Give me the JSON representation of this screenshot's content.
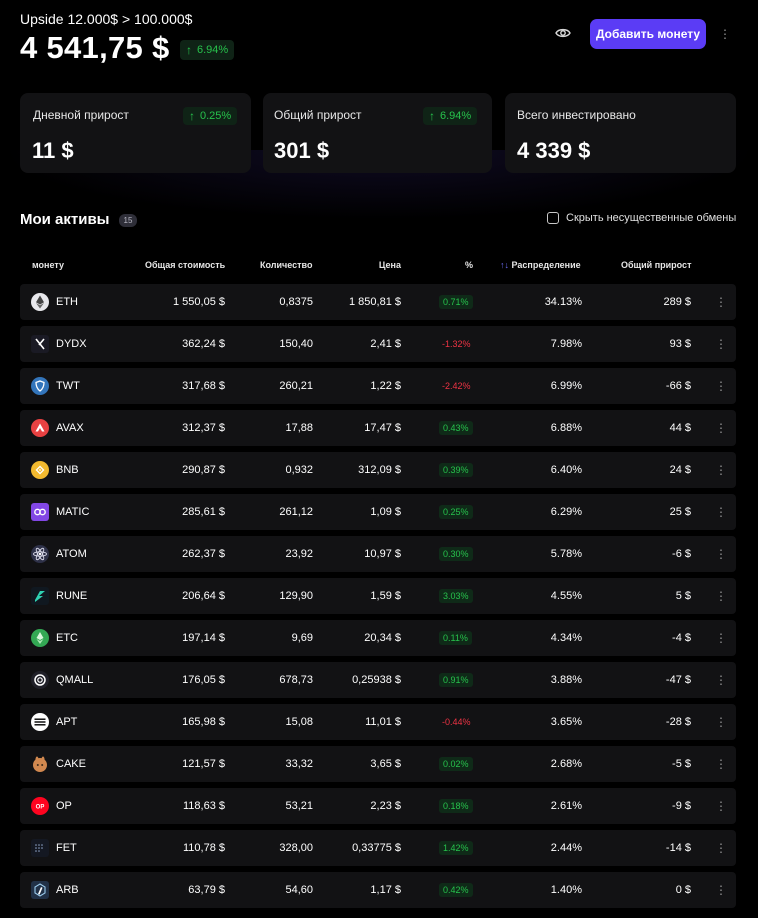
{
  "header": {
    "subtitle": "Upside 12.000$ > 100.000$",
    "balance": "4 541,75 $",
    "change": "6.94%",
    "add_button": "Добавить монету"
  },
  "cards": [
    {
      "label": "Дневной прирост",
      "value": "11 $",
      "change": "0.25%"
    },
    {
      "label": "Общий прирост",
      "value": "301 $",
      "change": "6.94%"
    },
    {
      "label": "Всего инвестировано",
      "value": "4 339 $",
      "change": ""
    }
  ],
  "assets": {
    "title": "Мои активы",
    "count": "15",
    "hide_label": "Скрыть несущественные обмены",
    "columns": {
      "coin": "монету",
      "total": "Общая стоимость",
      "qty": "Количество",
      "price": "Цена",
      "pct": "%",
      "alloc": "Распределение",
      "profit": "Общий прирост"
    },
    "rows": [
      {
        "icon": "eth-icon",
        "ticker": "ETH",
        "total": "1 550,05 $",
        "qty": "0,8375",
        "price": "1 850,81 $",
        "pct": "0.71%",
        "dir": "up",
        "alloc": "34.13%",
        "profit": "289 $"
      },
      {
        "icon": "dydx-icon",
        "ticker": "DYDX",
        "total": "362,24 $",
        "qty": "150,40",
        "price": "2,41 $",
        "pct": "-1.32%",
        "dir": "down",
        "alloc": "7.98%",
        "profit": "93 $"
      },
      {
        "icon": "twt-icon",
        "ticker": "TWT",
        "total": "317,68 $",
        "qty": "260,21",
        "price": "1,22 $",
        "pct": "-2.42%",
        "dir": "down",
        "alloc": "6.99%",
        "profit": "-66 $"
      },
      {
        "icon": "avax-icon",
        "ticker": "AVAX",
        "total": "312,37 $",
        "qty": "17,88",
        "price": "17,47 $",
        "pct": "0.43%",
        "dir": "up",
        "alloc": "6.88%",
        "profit": "44 $"
      },
      {
        "icon": "bnb-icon",
        "ticker": "BNB",
        "total": "290,87 $",
        "qty": "0,932",
        "price": "312,09 $",
        "pct": "0.39%",
        "dir": "up",
        "alloc": "6.40%",
        "profit": "24 $"
      },
      {
        "icon": "matic-icon",
        "ticker": "MATIC",
        "total": "285,61 $",
        "qty": "261,12",
        "price": "1,09 $",
        "pct": "0.25%",
        "dir": "up",
        "alloc": "6.29%",
        "profit": "25 $"
      },
      {
        "icon": "atom-icon",
        "ticker": "ATOM",
        "total": "262,37 $",
        "qty": "23,92",
        "price": "10,97 $",
        "pct": "0.30%",
        "dir": "up",
        "alloc": "5.78%",
        "profit": "-6 $"
      },
      {
        "icon": "rune-icon",
        "ticker": "RUNE",
        "total": "206,64 $",
        "qty": "129,90",
        "price": "1,59 $",
        "pct": "3.03%",
        "dir": "up",
        "alloc": "4.55%",
        "profit": "5 $"
      },
      {
        "icon": "etc-icon",
        "ticker": "ETC",
        "total": "197,14 $",
        "qty": "9,69",
        "price": "20,34 $",
        "pct": "0.11%",
        "dir": "up",
        "alloc": "4.34%",
        "profit": "-4 $"
      },
      {
        "icon": "qmall-icon",
        "ticker": "QMALL",
        "total": "176,05 $",
        "qty": "678,73",
        "price": "0,25938 $",
        "pct": "0.91%",
        "dir": "up",
        "alloc": "3.88%",
        "profit": "-47 $"
      },
      {
        "icon": "apt-icon",
        "ticker": "APT",
        "total": "165,98 $",
        "qty": "15,08",
        "price": "11,01 $",
        "pct": "-0.44%",
        "dir": "down",
        "alloc": "3.65%",
        "profit": "-28 $"
      },
      {
        "icon": "cake-icon",
        "ticker": "CAKE",
        "total": "121,57 $",
        "qty": "33,32",
        "price": "3,65 $",
        "pct": "0.02%",
        "dir": "up",
        "alloc": "2.68%",
        "profit": "-5 $"
      },
      {
        "icon": "op-icon",
        "ticker": "OP",
        "total": "118,63 $",
        "qty": "53,21",
        "price": "2,23 $",
        "pct": "0.18%",
        "dir": "up",
        "alloc": "2.61%",
        "profit": "-9 $"
      },
      {
        "icon": "fet-icon",
        "ticker": "FET",
        "total": "110,78 $",
        "qty": "328,00",
        "price": "0,33775 $",
        "pct": "1.42%",
        "dir": "up",
        "alloc": "2.44%",
        "profit": "-14 $"
      },
      {
        "icon": "arb-icon",
        "ticker": "ARB",
        "total": "63,79 $",
        "qty": "54,60",
        "price": "1,17 $",
        "pct": "0.42%",
        "dir": "up",
        "alloc": "1.40%",
        "profit": "0 $"
      }
    ]
  },
  "colors": {
    "accent": "#5b3cf5",
    "positive": "#27c24c",
    "negative": "#ee3344",
    "card_bg": "#121214"
  }
}
